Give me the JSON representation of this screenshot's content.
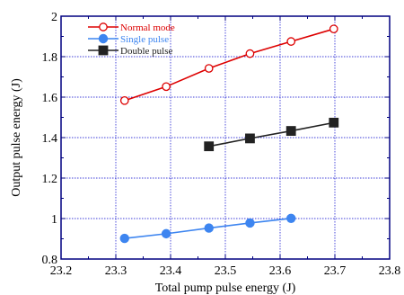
{
  "chart_data": {
    "type": "line",
    "xlabel": "Total  pump pulse energy (J)",
    "ylabel": "Output pulse energy (J)",
    "xlim": [
      23.2,
      23.8
    ],
    "ylim": [
      0.8,
      2.0
    ],
    "xticks": [
      23.2,
      23.3,
      23.4,
      23.5,
      23.6,
      23.7,
      23.8
    ],
    "yticks": [
      0.8,
      1.0,
      1.2,
      1.4,
      1.6,
      1.8,
      2.0
    ],
    "xtick_labels": [
      "23.2",
      "23.3",
      "23.4",
      "23.5",
      "23.6",
      "23.7",
      "23.8"
    ],
    "ytick_labels": [
      "0.8",
      "1",
      "1.2",
      "1.4",
      "1.6",
      "1.8",
      "2"
    ],
    "grid": true,
    "legend_position": "top-left",
    "series": [
      {
        "name": "Normal mode",
        "color": "#dd0000",
        "marker": "open-circle",
        "x": [
          23.316,
          23.392,
          23.47,
          23.545,
          23.62,
          23.698
        ],
        "y": [
          1.583,
          1.652,
          1.742,
          1.815,
          1.875,
          1.937
        ]
      },
      {
        "name": "Single pulse",
        "color": "#3d85f0",
        "marker": "filled-circle",
        "x": [
          23.316,
          23.392,
          23.47,
          23.545,
          23.62
        ],
        "y": [
          0.902,
          0.925,
          0.953,
          0.978,
          1.001
        ]
      },
      {
        "name": "Double pulse",
        "color": "#222222",
        "marker": "filled-square",
        "x": [
          23.47,
          23.545,
          23.62,
          23.698
        ],
        "y": [
          1.357,
          1.396,
          1.433,
          1.474
        ]
      }
    ]
  }
}
